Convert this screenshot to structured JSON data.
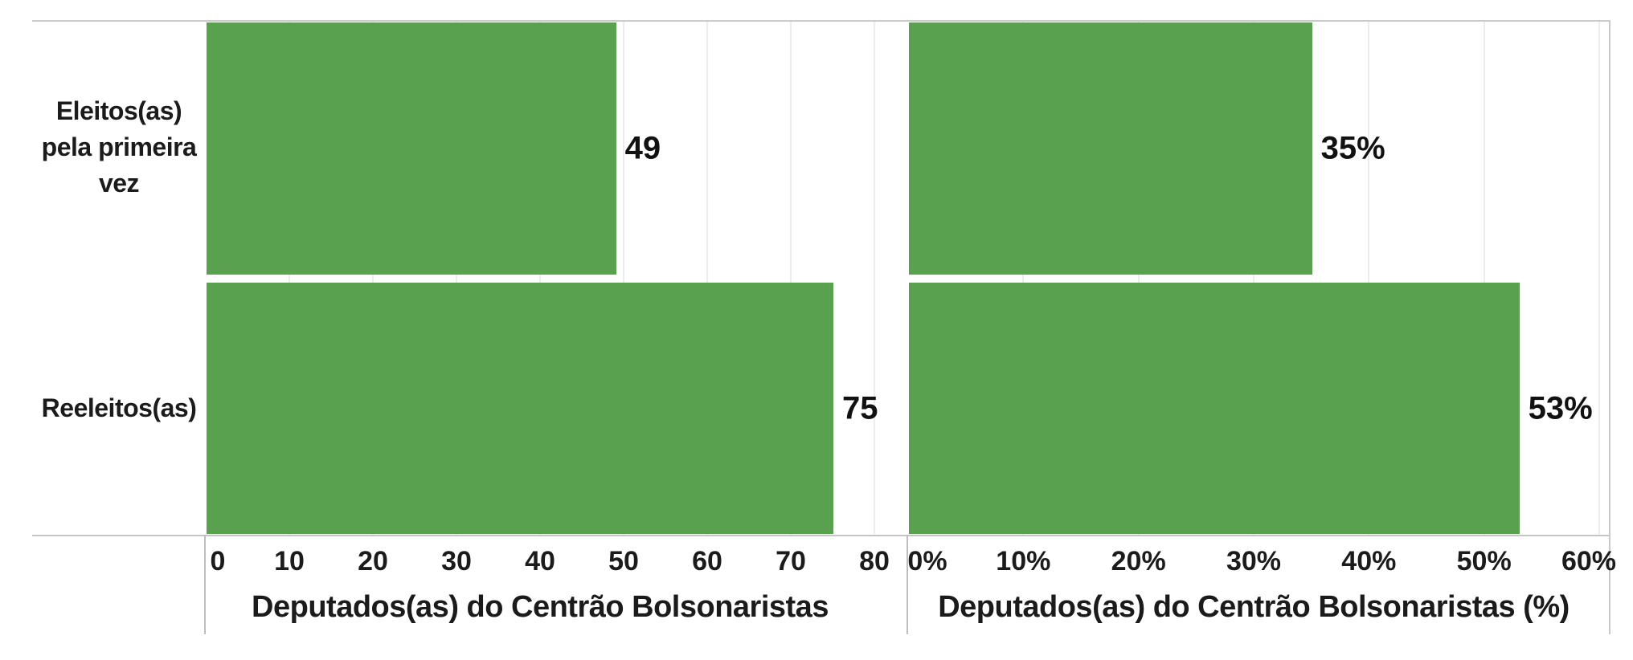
{
  "chart_data": [
    {
      "type": "bar",
      "orientation": "horizontal",
      "categories": [
        "Eleitos(as) pela primeira vez",
        "Reeleitos(as)"
      ],
      "values": [
        49,
        75
      ],
      "data_labels": [
        "49",
        "75"
      ],
      "xlabel": "Deputados(as) do Centrão Bolsonaristas",
      "xticks": [
        "0",
        "10",
        "20",
        "30",
        "40",
        "50",
        "60",
        "70",
        "80"
      ],
      "xlim": [
        0,
        80
      ],
      "grid": "vertical-light",
      "legend": "none",
      "bar_color": "#59a14f"
    },
    {
      "type": "bar",
      "orientation": "horizontal",
      "categories": [
        "Eleitos(as) pela primeira vez",
        "Reeleitos(as)"
      ],
      "values": [
        35,
        53
      ],
      "data_labels": [
        "35%",
        "53%"
      ],
      "xlabel": "Deputados(as) do Centrão Bolsonaristas (%)",
      "xticks": [
        "0%",
        "10%",
        "20%",
        "30%",
        "40%",
        "50%",
        "60%"
      ],
      "xlim": [
        0,
        60
      ],
      "grid": "vertical-light",
      "legend": "none",
      "bar_color": "#59a14f"
    }
  ],
  "row_labels": [
    "Eleitos(as)\npela primeira\nvez",
    "Reeleitos(as)"
  ],
  "colors": {
    "bar": "#59a14f",
    "gridline": "#ededed",
    "axis_line": "#c5c5c5",
    "border": "#c9c9c9",
    "text": "#1b1b1b"
  }
}
